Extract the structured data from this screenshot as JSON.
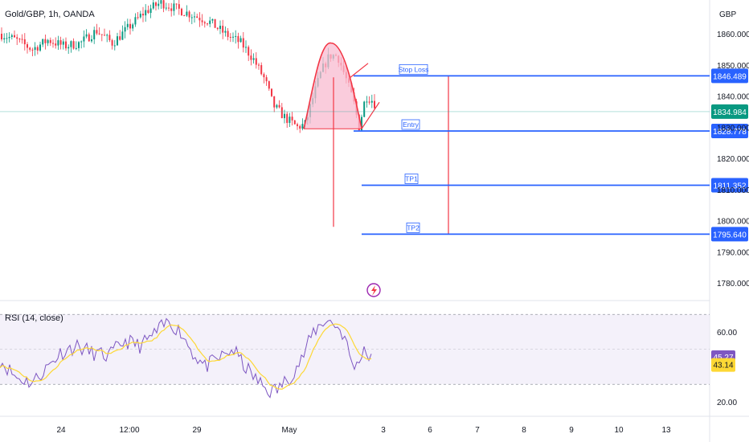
{
  "chart_data": {
    "type": "candlestick",
    "symbol_label": "Gold/GBP, 1h, OANDA",
    "currency": "GBP",
    "price_axis": {
      "ylim": [
        1775,
        1867
      ],
      "ticks": [
        "1860.000",
        "1850.000",
        "1840.000",
        "1830.000",
        "1820.000",
        "1810.000",
        "1800.000",
        "1790.000",
        "1780.000"
      ],
      "tick_values": [
        1860,
        1850,
        1840,
        1830,
        1820,
        1810,
        1800,
        1790,
        1780
      ]
    },
    "price_tags": {
      "stop_loss": "1846.489",
      "current": "1834.984",
      "entry": "1828.778",
      "tp1": "1811.352",
      "tp2": "1795.640"
    },
    "levels": [
      {
        "label": "Stop Loss",
        "value": 1846.489
      },
      {
        "label": "Entry",
        "value": 1828.778
      },
      {
        "label": "TP1",
        "value": 1811.352
      },
      {
        "label": "TP2",
        "value": 1795.64
      }
    ],
    "current_price": 1834.984,
    "time_axis": [
      "24",
      "12:00",
      "29",
      "May",
      "3",
      "6",
      "7",
      "8",
      "9",
      "10",
      "13"
    ],
    "rsi": {
      "label": "RSI (14, close)",
      "ticks": [
        "60.00",
        "20.00"
      ],
      "tick_values": [
        60,
        20
      ],
      "ylim": [
        13,
        80
      ],
      "band": [
        30,
        70
      ],
      "midline": 50,
      "value": "45.27",
      "ma_value": "43.14",
      "line_color": "#7e57c2",
      "ma_color": "#fdd835"
    },
    "colors": {
      "up": "#089981",
      "down": "#f23645",
      "level_line": "#2962ff",
      "pattern": "#f23645",
      "pattern_fill": "#f8bbd0",
      "rsi_band": "#ede7f6"
    }
  }
}
